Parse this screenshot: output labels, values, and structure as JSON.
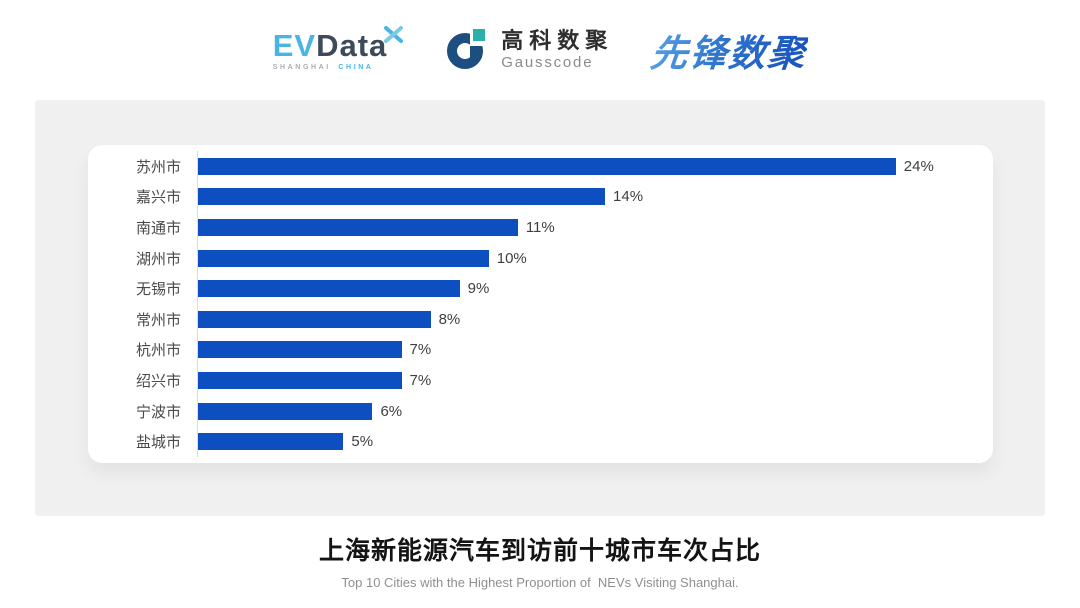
{
  "header": {
    "logos": {
      "evdata": {
        "ev": "EV",
        "data": "Data",
        "sub_left": "SHANGHAI",
        "sub_right": "CHINA",
        "accent_color": "#49b4e6",
        "dark_color": "#3d4a5a"
      },
      "gausscode": {
        "cn": "高科数聚",
        "en": "Gausscode",
        "mark_navy": "#1c4e80",
        "mark_teal": "#29b0ad"
      },
      "xianfeng": {
        "text": "先锋数聚",
        "gradient_from": "#5aa2e4",
        "gradient_to": "#1a55bd"
      }
    }
  },
  "chart_data": {
    "type": "bar",
    "orientation": "horizontal",
    "title": "上海新能源汽车到访前十城市车次占比",
    "subtitle": "Top 10 Cities with the Highest Proportion of  NEVs Visiting Shanghai.",
    "categories": [
      "苏州市",
      "嘉兴市",
      "南通市",
      "湖州市",
      "无锡市",
      "常州市",
      "杭州市",
      "绍兴市",
      "宁波市",
      "盐城市"
    ],
    "values": [
      24,
      14,
      11,
      10,
      9,
      8,
      7,
      7,
      6,
      5
    ],
    "value_labels": [
      "24%",
      "14%",
      "11%",
      "10%",
      "9%",
      "8%",
      "7%",
      "7%",
      "6%",
      "5%"
    ],
    "unit": "%",
    "axis_max": 27,
    "bar_color": "#0d4ec0",
    "axis_line_color": "#dcdcdc",
    "grid": false,
    "legend": false,
    "value_labels_position": "end-of-bar"
  },
  "caption": {
    "title": "上海新能源汽车到访前十城市车次占比",
    "subtitle": "Top 10 Cities with the Highest Proportion of  NEVs Visiting Shanghai."
  },
  "colors": {
    "page_background": "#ffffff",
    "panel_background": "#f0f0f0",
    "card_background": "#ffffff",
    "label_text": "#4a4a4a",
    "value_text": "#3f3f3f",
    "title_text": "#141414",
    "subtitle_text": "#8f8f8f"
  }
}
